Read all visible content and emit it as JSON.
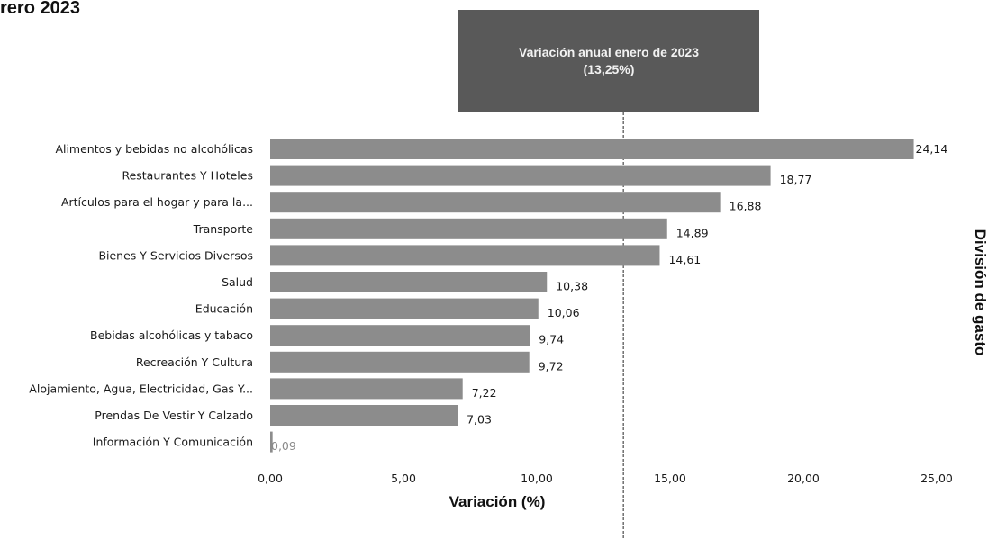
{
  "chart_data": {
    "type": "bar",
    "orientation": "horizontal",
    "title": "rero 2023",
    "categories": [
      "Alimentos y bebidas no alcohólicas",
      "Restaurantes Y Hoteles",
      "Artículos para el hogar y para la...",
      "Transporte",
      "Bienes Y Servicios Diversos",
      "Salud",
      "Educación",
      "Bebidas alcohólicas y tabaco",
      "Recreación Y Cultura",
      "Alojamiento, Agua, Electricidad, Gas Y...",
      "Prendas De Vestir Y Calzado",
      "Información Y Comunicación"
    ],
    "values": [
      24.14,
      18.77,
      16.88,
      14.89,
      14.61,
      10.38,
      10.06,
      9.74,
      9.72,
      7.22,
      7.03,
      0.09
    ],
    "value_labels": [
      "24,14",
      "18,77",
      "16,88",
      "14,89",
      "14,61",
      "10,38",
      "10,06",
      "9,74",
      "9,72",
      "7,22",
      "7,03",
      "0,09"
    ],
    "xlabel": "Variación (%)",
    "ylabel": "División de gasto",
    "xlim": [
      0,
      25
    ],
    "xticks": [
      0,
      5,
      10,
      15,
      20,
      25
    ],
    "xtick_labels": [
      "0,00",
      "5,00",
      "10,00",
      "15,00",
      "20,00",
      "25,00"
    ],
    "grid": false,
    "bar_color": "#8c8c8c",
    "reference_line": {
      "value": 13.25,
      "style": "dashed",
      "label_line1": "Variación anual enero de 2023",
      "label_line2": "(13,25%)",
      "label_bg": "#595959"
    }
  }
}
